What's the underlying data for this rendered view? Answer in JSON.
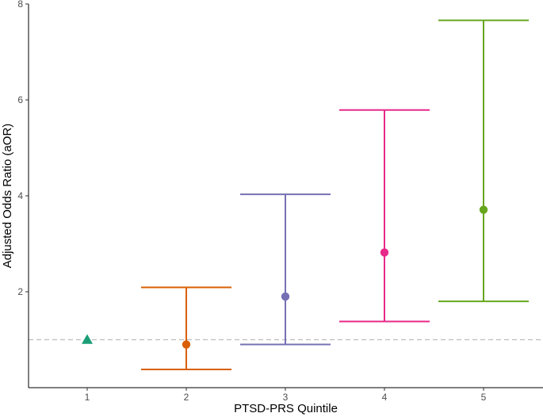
{
  "chart_data": {
    "type": "scatter",
    "title": "",
    "xlabel": "PTSD-PRS Quintile",
    "ylabel": "Adjusted Odds Ratio (aOR)",
    "x_ticks": [
      "1",
      "2",
      "3",
      "4",
      "5"
    ],
    "y_ticks": [
      "2",
      "4",
      "6",
      "8"
    ],
    "ylim": [
      0,
      8
    ],
    "grid": false,
    "reference_line": {
      "y": 1,
      "style": "dashed",
      "color": "#bdbdbd"
    },
    "points": [
      {
        "x": "1",
        "or": 1.0,
        "lower": null,
        "upper": null,
        "shape": "triangle",
        "color": "#1b9e77"
      },
      {
        "x": "2",
        "or": 0.9,
        "lower": 0.38,
        "upper": 2.09,
        "shape": "circle",
        "color": "#d95f02"
      },
      {
        "x": "3",
        "or": 1.9,
        "lower": 0.9,
        "upper": 4.03,
        "shape": "circle",
        "color": "#7570b3"
      },
      {
        "x": "4",
        "or": 2.82,
        "lower": 1.38,
        "upper": 5.79,
        "shape": "circle",
        "color": "#e7298a"
      },
      {
        "x": "5",
        "or": 3.71,
        "lower": 1.8,
        "upper": 7.66,
        "shape": "circle",
        "color": "#66a61e"
      }
    ]
  }
}
